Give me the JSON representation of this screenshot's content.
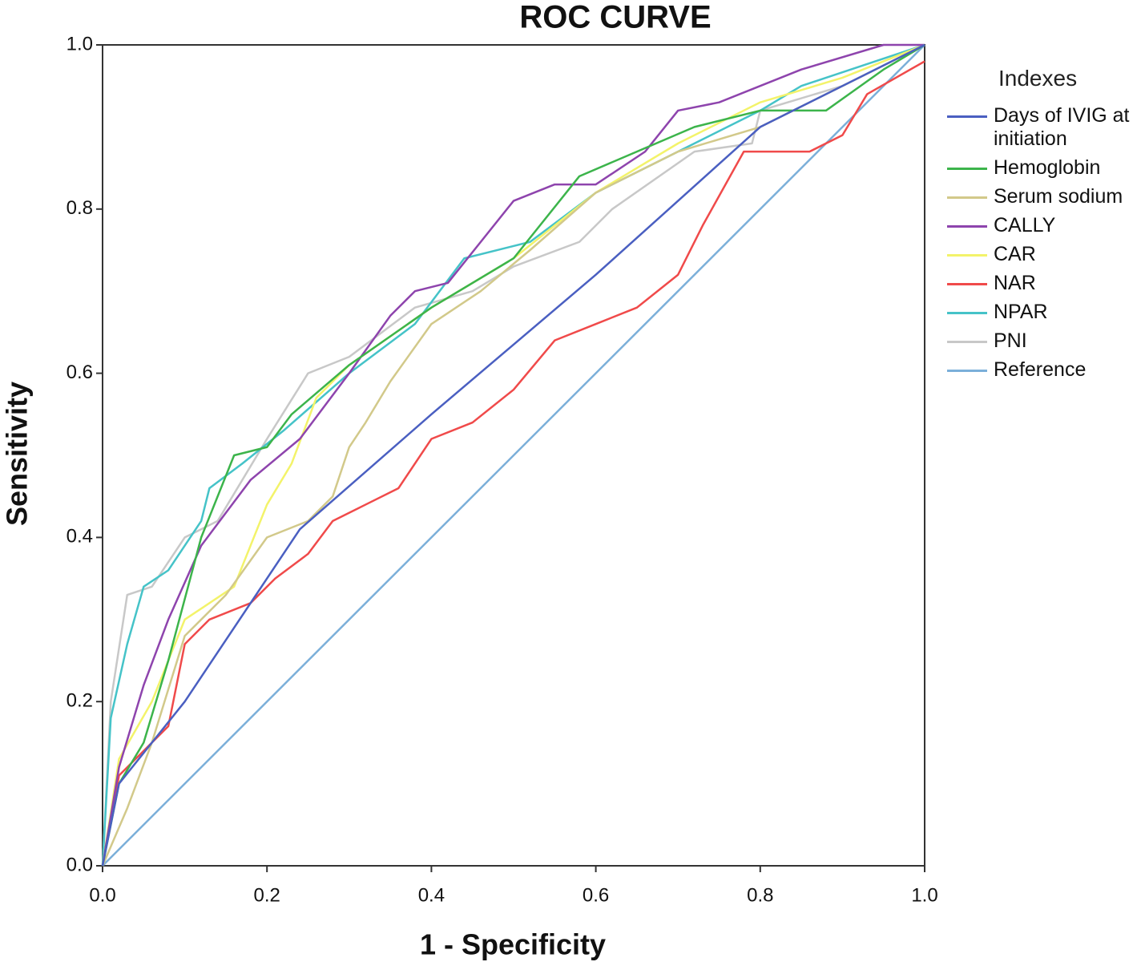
{
  "chart_data": {
    "type": "line",
    "title": "ROC CURVE",
    "x_label": "1 - Specificity",
    "y_label": "Sensitivity",
    "legend_title": "Indexes",
    "legend": "right",
    "xlim": [
      0,
      1
    ],
    "ylim": [
      0,
      1
    ],
    "xticks": [
      {
        "value": 0,
        "label": "0.0"
      },
      0.2,
      0.4,
      0.6,
      0.8,
      {
        "value": 1,
        "label": "1.0"
      }
    ],
    "yticks": [
      {
        "value": 0,
        "label": "0.0"
      },
      0.2,
      0.4,
      0.6,
      0.8,
      {
        "value": 1,
        "label": "1.0"
      }
    ],
    "series": [
      {
        "name": "Days of IVIG at initiation",
        "color": "#4a5fc1",
        "x": [
          0,
          0.02,
          0.1,
          0.24,
          0.4,
          0.6,
          0.8,
          1
        ],
        "values": [
          0,
          0.1,
          0.2,
          0.41,
          0.55,
          0.72,
          0.9,
          1
        ]
      },
      {
        "name": "Hemoglobin",
        "color": "#3cb44b",
        "x": [
          0,
          0.02,
          0.05,
          0.08,
          0.12,
          0.16,
          0.2,
          0.23,
          0.3,
          0.4,
          0.5,
          0.58,
          0.65,
          0.72,
          0.8,
          0.88,
          0.95,
          1
        ],
        "values": [
          0,
          0.1,
          0.15,
          0.25,
          0.4,
          0.5,
          0.51,
          0.55,
          0.61,
          0.68,
          0.74,
          0.84,
          0.87,
          0.9,
          0.92,
          0.92,
          0.97,
          1
        ]
      },
      {
        "name": "Serum sodium",
        "color": "#d2c98a",
        "x": [
          0,
          0.03,
          0.06,
          0.1,
          0.15,
          0.2,
          0.25,
          0.28,
          0.3,
          0.32,
          0.35,
          0.4,
          0.46,
          0.52,
          0.6,
          0.7,
          0.8,
          0.9,
          1
        ],
        "values": [
          0,
          0.07,
          0.15,
          0.28,
          0.33,
          0.4,
          0.42,
          0.45,
          0.51,
          0.54,
          0.59,
          0.66,
          0.7,
          0.75,
          0.82,
          0.87,
          0.9,
          0.95,
          1
        ]
      },
      {
        "name": "CALLY",
        "color": "#8e44ad",
        "x": [
          0,
          0.02,
          0.05,
          0.08,
          0.12,
          0.18,
          0.24,
          0.3,
          0.35,
          0.38,
          0.42,
          0.46,
          0.5,
          0.55,
          0.6,
          0.66,
          0.7,
          0.75,
          0.85,
          0.95,
          1
        ],
        "values": [
          0,
          0.12,
          0.22,
          0.3,
          0.39,
          0.47,
          0.52,
          0.6,
          0.67,
          0.7,
          0.71,
          0.76,
          0.81,
          0.83,
          0.83,
          0.87,
          0.92,
          0.93,
          0.97,
          1,
          1
        ]
      },
      {
        "name": "CAR",
        "color": "#f3f36a",
        "x": [
          0,
          0.02,
          0.06,
          0.1,
          0.16,
          0.2,
          0.23,
          0.26,
          0.3,
          0.4,
          0.5,
          0.6,
          0.7,
          0.8,
          0.9,
          1
        ],
        "values": [
          0,
          0.13,
          0.2,
          0.3,
          0.34,
          0.44,
          0.49,
          0.57,
          0.61,
          0.68,
          0.74,
          0.82,
          0.88,
          0.93,
          0.96,
          1
        ]
      },
      {
        "name": "NAR",
        "color": "#f04a4a",
        "x": [
          0,
          0.02,
          0.05,
          0.08,
          0.1,
          0.13,
          0.18,
          0.21,
          0.25,
          0.28,
          0.32,
          0.36,
          0.4,
          0.45,
          0.5,
          0.55,
          0.6,
          0.65,
          0.7,
          0.73,
          0.78,
          0.86,
          0.9,
          0.93,
          1
        ],
        "values": [
          0,
          0.11,
          0.14,
          0.17,
          0.27,
          0.3,
          0.32,
          0.35,
          0.38,
          0.42,
          0.44,
          0.46,
          0.52,
          0.54,
          0.58,
          0.64,
          0.66,
          0.68,
          0.72,
          0.78,
          0.87,
          0.87,
          0.89,
          0.94,
          0.98
        ]
      },
      {
        "name": "NPAR",
        "color": "#45c3c8",
        "x": [
          0,
          0.01,
          0.03,
          0.05,
          0.08,
          0.12,
          0.13,
          0.17,
          0.22,
          0.3,
          0.38,
          0.44,
          0.52,
          0.6,
          0.7,
          0.8,
          0.85,
          1
        ],
        "values": [
          0,
          0.18,
          0.27,
          0.34,
          0.36,
          0.42,
          0.46,
          0.49,
          0.53,
          0.6,
          0.66,
          0.74,
          0.76,
          0.82,
          0.87,
          0.92,
          0.95,
          1
        ]
      },
      {
        "name": "PNI",
        "color": "#c8c8c8",
        "x": [
          0,
          0.01,
          0.03,
          0.06,
          0.1,
          0.14,
          0.2,
          0.25,
          0.3,
          0.38,
          0.45,
          0.5,
          0.58,
          0.62,
          0.72,
          0.79,
          0.8,
          0.9,
          1
        ],
        "values": [
          0,
          0.2,
          0.33,
          0.34,
          0.4,
          0.42,
          0.52,
          0.6,
          0.62,
          0.68,
          0.7,
          0.73,
          0.76,
          0.8,
          0.87,
          0.88,
          0.92,
          0.95,
          1
        ]
      },
      {
        "name": "Reference",
        "color": "#7bafd9",
        "x": [
          0,
          1
        ],
        "values": [
          0,
          1
        ]
      }
    ]
  }
}
